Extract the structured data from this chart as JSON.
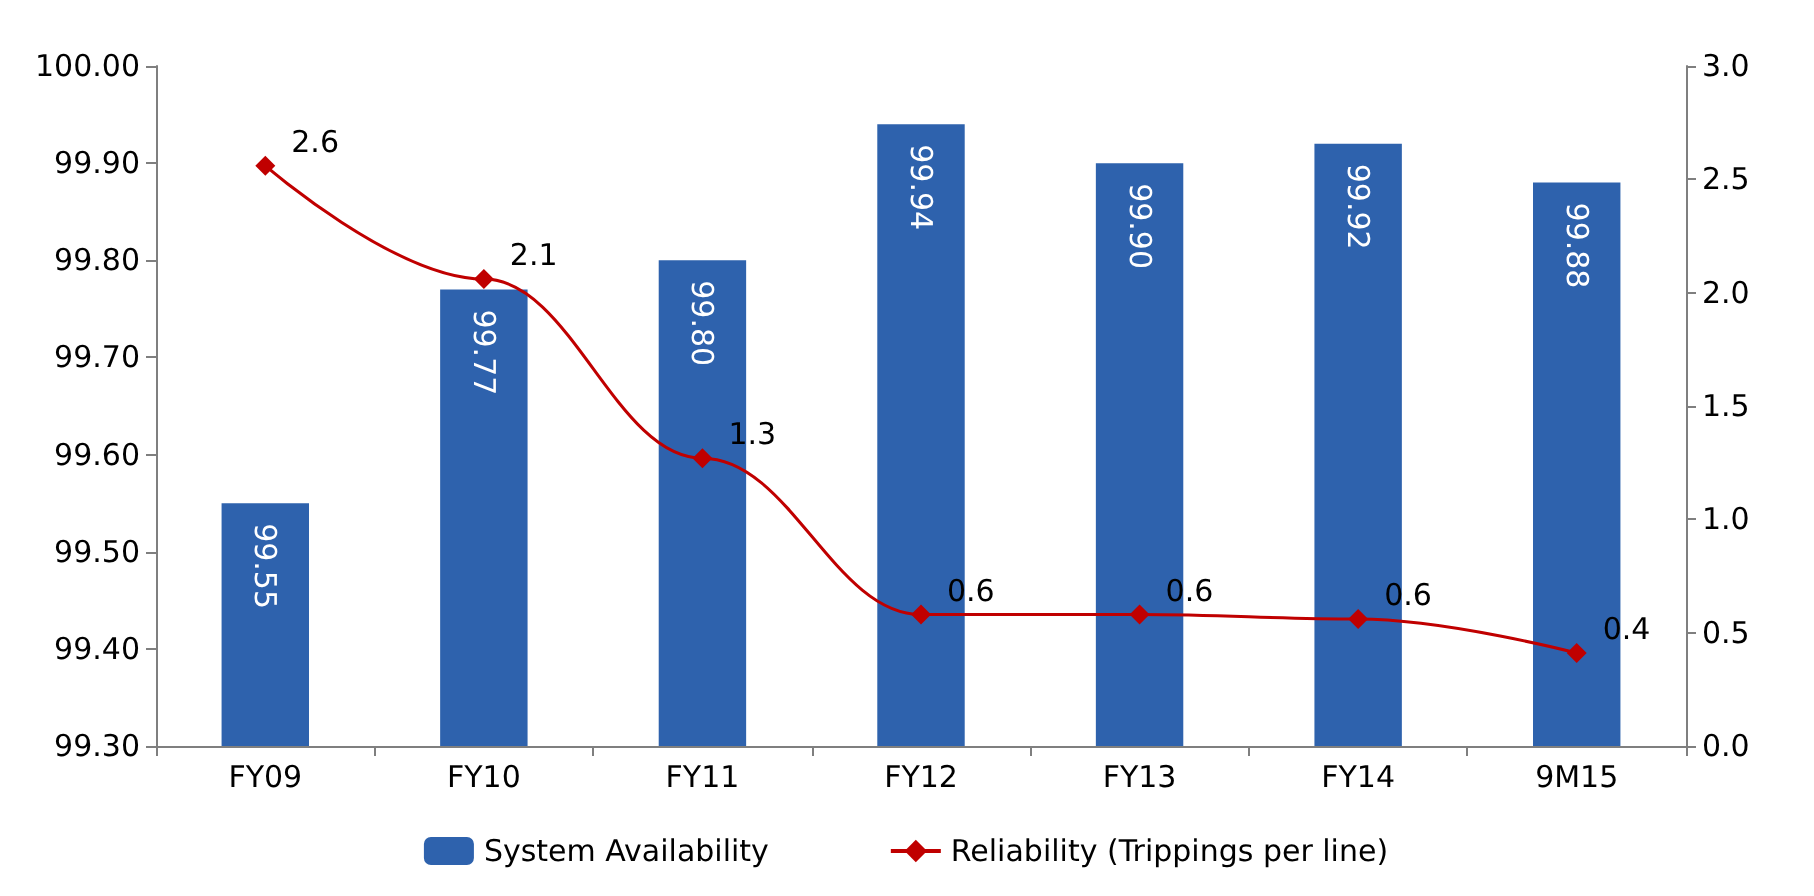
{
  "chart_data": {
    "type": "bar",
    "categories": [
      "FY09",
      "FY10",
      "FY11",
      "FY12",
      "FY13",
      "FY14",
      "9M15"
    ],
    "series": [
      {
        "name": "System Availability",
        "color": "#2e62ad",
        "values": [
          99.55,
          99.77,
          99.8,
          99.94,
          99.9,
          99.92,
          99.88
        ],
        "value_labels": [
          "99.55",
          "99.77",
          "99.80",
          "99.94",
          "99.90",
          "99.92",
          "99.88"
        ]
      },
      {
        "name": "Reliability (Trippings per line)",
        "type": "line",
        "axis": "y2",
        "color": "#c00000",
        "marker": "diamond",
        "values": [
          2.56,
          2.06,
          1.27,
          0.58,
          0.58,
          0.56,
          0.41
        ],
        "value_labels": [
          "2.6",
          "2.1",
          "1.3",
          "0.6",
          "0.6",
          "0.6",
          "0.4"
        ]
      }
    ],
    "ylim": [
      99.3,
      100
    ],
    "yticks": [
      {
        "value": 99.3,
        "label": "99.30"
      },
      {
        "value": 99.4,
        "label": "99.40"
      },
      {
        "value": 99.5,
        "label": "99.50"
      },
      {
        "value": 99.6,
        "label": "99.60"
      },
      {
        "value": 99.7,
        "label": "99.70"
      },
      {
        "value": 99.8,
        "label": "99.80"
      },
      {
        "value": 99.9,
        "label": "99.90"
      },
      {
        "value": 100,
        "label": "100.00"
      }
    ],
    "y2lim": [
      0,
      3
    ],
    "y2ticks": [
      {
        "value": 0,
        "label": "0.0"
      },
      {
        "value": 0.5,
        "label": "0.5"
      },
      {
        "value": 1,
        "label": "1.0"
      },
      {
        "value": 1.5,
        "label": "1.5"
      },
      {
        "value": 2,
        "label": "2.0"
      },
      {
        "value": 2.5,
        "label": "2.5"
      },
      {
        "value": 3,
        "label": "3.0"
      }
    ],
    "grid": false,
    "legend": "bottom"
  }
}
